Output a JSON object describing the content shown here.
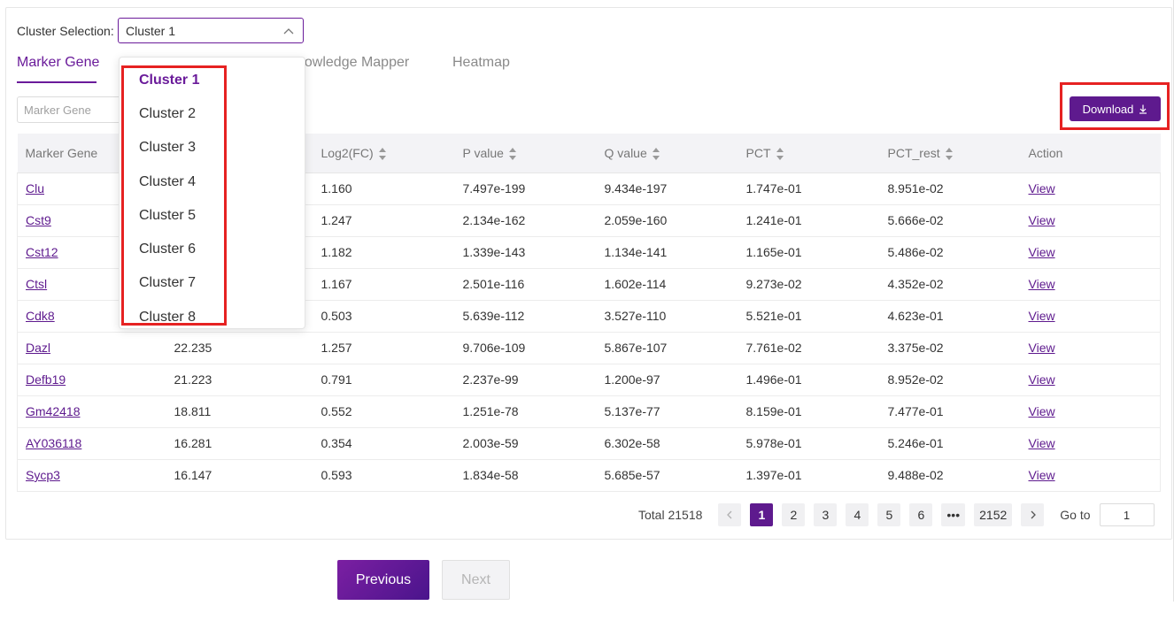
{
  "cluster_selection": {
    "label": "Cluster Selection:",
    "selected": "Cluster 1",
    "options": [
      "Cluster 1",
      "Cluster 2",
      "Cluster 3",
      "Cluster 4",
      "Cluster 5",
      "Cluster 6",
      "Cluster 7",
      "Cluster 8"
    ]
  },
  "tabs": [
    {
      "label": "Marker Gene",
      "active": true
    },
    {
      "label": "nowledge Mapper",
      "active": false
    },
    {
      "label": "Heatmap",
      "active": false
    }
  ],
  "search": {
    "placeholder": "Marker Gene"
  },
  "download": {
    "label": "Download",
    "icon": "download-icon"
  },
  "table": {
    "columns": [
      "Marker Gene",
      "",
      "Log2(FC)",
      "P value",
      "Q value",
      "PCT",
      "PCT_rest",
      "Action"
    ],
    "rows": [
      {
        "gene": "Clu",
        "score": "",
        "log2fc": "1.160",
        "pvalue": "7.497e-199",
        "qvalue": "9.434e-197",
        "pct": "1.747e-01",
        "pct_rest": "8.951e-02",
        "action": "View"
      },
      {
        "gene": "Cst9",
        "score": "",
        "log2fc": "1.247",
        "pvalue": "2.134e-162",
        "qvalue": "2.059e-160",
        "pct": "1.241e-01",
        "pct_rest": "5.666e-02",
        "action": "View"
      },
      {
        "gene": "Cst12",
        "score": "",
        "log2fc": "1.182",
        "pvalue": "1.339e-143",
        "qvalue": "1.134e-141",
        "pct": "1.165e-01",
        "pct_rest": "5.486e-02",
        "action": "View"
      },
      {
        "gene": "Ctsl",
        "score": "",
        "log2fc": "1.167",
        "pvalue": "2.501e-116",
        "qvalue": "1.602e-114",
        "pct": "9.273e-02",
        "pct_rest": "4.352e-02",
        "action": "View"
      },
      {
        "gene": "Cdk8",
        "score": "",
        "log2fc": "0.503",
        "pvalue": "5.639e-112",
        "qvalue": "3.527e-110",
        "pct": "5.521e-01",
        "pct_rest": "4.623e-01",
        "action": "View"
      },
      {
        "gene": "Dazl",
        "score": "22.235",
        "log2fc": "1.257",
        "pvalue": "9.706e-109",
        "qvalue": "5.867e-107",
        "pct": "7.761e-02",
        "pct_rest": "3.375e-02",
        "action": "View"
      },
      {
        "gene": "Defb19",
        "score": "21.223",
        "log2fc": "0.791",
        "pvalue": "2.237e-99",
        "qvalue": "1.200e-97",
        "pct": "1.496e-01",
        "pct_rest": "8.952e-02",
        "action": "View"
      },
      {
        "gene": "Gm42418",
        "score": "18.811",
        "log2fc": "0.552",
        "pvalue": "1.251e-78",
        "qvalue": "5.137e-77",
        "pct": "8.159e-01",
        "pct_rest": "7.477e-01",
        "action": "View"
      },
      {
        "gene": "AY036118",
        "score": "16.281",
        "log2fc": "0.354",
        "pvalue": "2.003e-59",
        "qvalue": "6.302e-58",
        "pct": "5.978e-01",
        "pct_rest": "5.246e-01",
        "action": "View"
      },
      {
        "gene": "Sycp3",
        "score": "16.147",
        "log2fc": "0.593",
        "pvalue": "1.834e-58",
        "qvalue": "5.685e-57",
        "pct": "1.397e-01",
        "pct_rest": "9.488e-02",
        "action": "View"
      }
    ]
  },
  "pagination": {
    "total_label": "Total 21518",
    "pages": [
      "1",
      "2",
      "3",
      "4",
      "5",
      "6",
      "•••",
      "2152"
    ],
    "current": "1",
    "goto_label": "Go to",
    "goto_value": "1"
  },
  "nav": {
    "previous": "Previous",
    "next": "Next"
  },
  "colors": {
    "accent": "#6a1b9a",
    "highlight_frame": "#e62222"
  }
}
